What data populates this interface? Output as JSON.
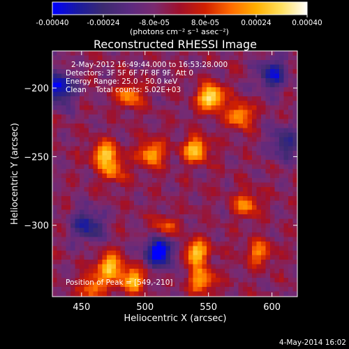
{
  "colorbar": {
    "ticks": [
      "-0.00040",
      "-0.00024",
      "-8.0e-05",
      "8.0e-05",
      "0.00024",
      "0.00040"
    ],
    "tick_values": [
      -0.0004,
      -0.00024,
      -8e-05,
      8e-05,
      0.00024,
      0.0004
    ],
    "range": [
      -0.0004,
      0.0004
    ],
    "unit_label": "(photons cm⁻² s⁻¹ asec⁻²)",
    "colors": [
      "#0000ff",
      "#1a1aa0",
      "#3c2a70",
      "#5a2a80",
      "#7a2a70",
      "#a0102a",
      "#d02000",
      "#ff6a00",
      "#ffb000",
      "#ffe060",
      "#ffffff"
    ]
  },
  "chart_data": {
    "type": "heatmap",
    "title": "Reconstructed RHESSI Image",
    "xlabel": "Heliocentric X (arcsec)",
    "ylabel": "Heliocentric Y (arcsec)",
    "xlim": [
      427,
      620
    ],
    "ylim": [
      -352,
      -173
    ],
    "xticks": [
      450,
      500,
      550,
      600
    ],
    "yticks": [
      -200,
      -250,
      -300
    ],
    "annotations": [
      "2-May-2012 16:49:44.000 to 16:53:28.000",
      "Detectors: 3F 5F 6F 7F 8F 9F, Att 0",
      "Energy Range: 25.0 - 50.0 keV",
      "Clean    Total counts: 5.02E+03"
    ],
    "peak_label": "Position of Peak = [549,-210]",
    "peak": [
      549,
      -210
    ],
    "sources": [
      {
        "x": 552,
        "y": -207,
        "level": 1.0
      },
      {
        "x": 575,
        "y": -220,
        "level": 0.7
      },
      {
        "x": 468,
        "y": -248,
        "level": 0.75
      },
      {
        "x": 505,
        "y": -248,
        "level": 0.7
      },
      {
        "x": 540,
        "y": -245,
        "level": 0.8
      },
      {
        "x": 488,
        "y": -205,
        "level": 0.6
      },
      {
        "x": 475,
        "y": -260,
        "level": 0.5
      },
      {
        "x": 472,
        "y": -330,
        "level": 0.8
      },
      {
        "x": 490,
        "y": -340,
        "level": 0.75
      },
      {
        "x": 540,
        "y": -320,
        "level": 0.8
      },
      {
        "x": 545,
        "y": -340,
        "level": 0.7
      },
      {
        "x": 580,
        "y": -285,
        "level": 0.55
      },
      {
        "x": 590,
        "y": -320,
        "level": 0.55
      },
      {
        "x": 460,
        "y": -345,
        "level": 0.6
      },
      {
        "x": 515,
        "y": -303,
        "level": 0.55
      }
    ],
    "minima": [
      {
        "x": 432,
        "y": -200,
        "level": -0.8
      },
      {
        "x": 512,
        "y": -318,
        "level": -0.9
      },
      {
        "x": 600,
        "y": -190,
        "level": -0.6
      },
      {
        "x": 455,
        "y": -300,
        "level": -0.6
      },
      {
        "x": 610,
        "y": -240,
        "level": -0.5
      }
    ]
  },
  "footer": {
    "date": "4-May-2014 16:02"
  }
}
